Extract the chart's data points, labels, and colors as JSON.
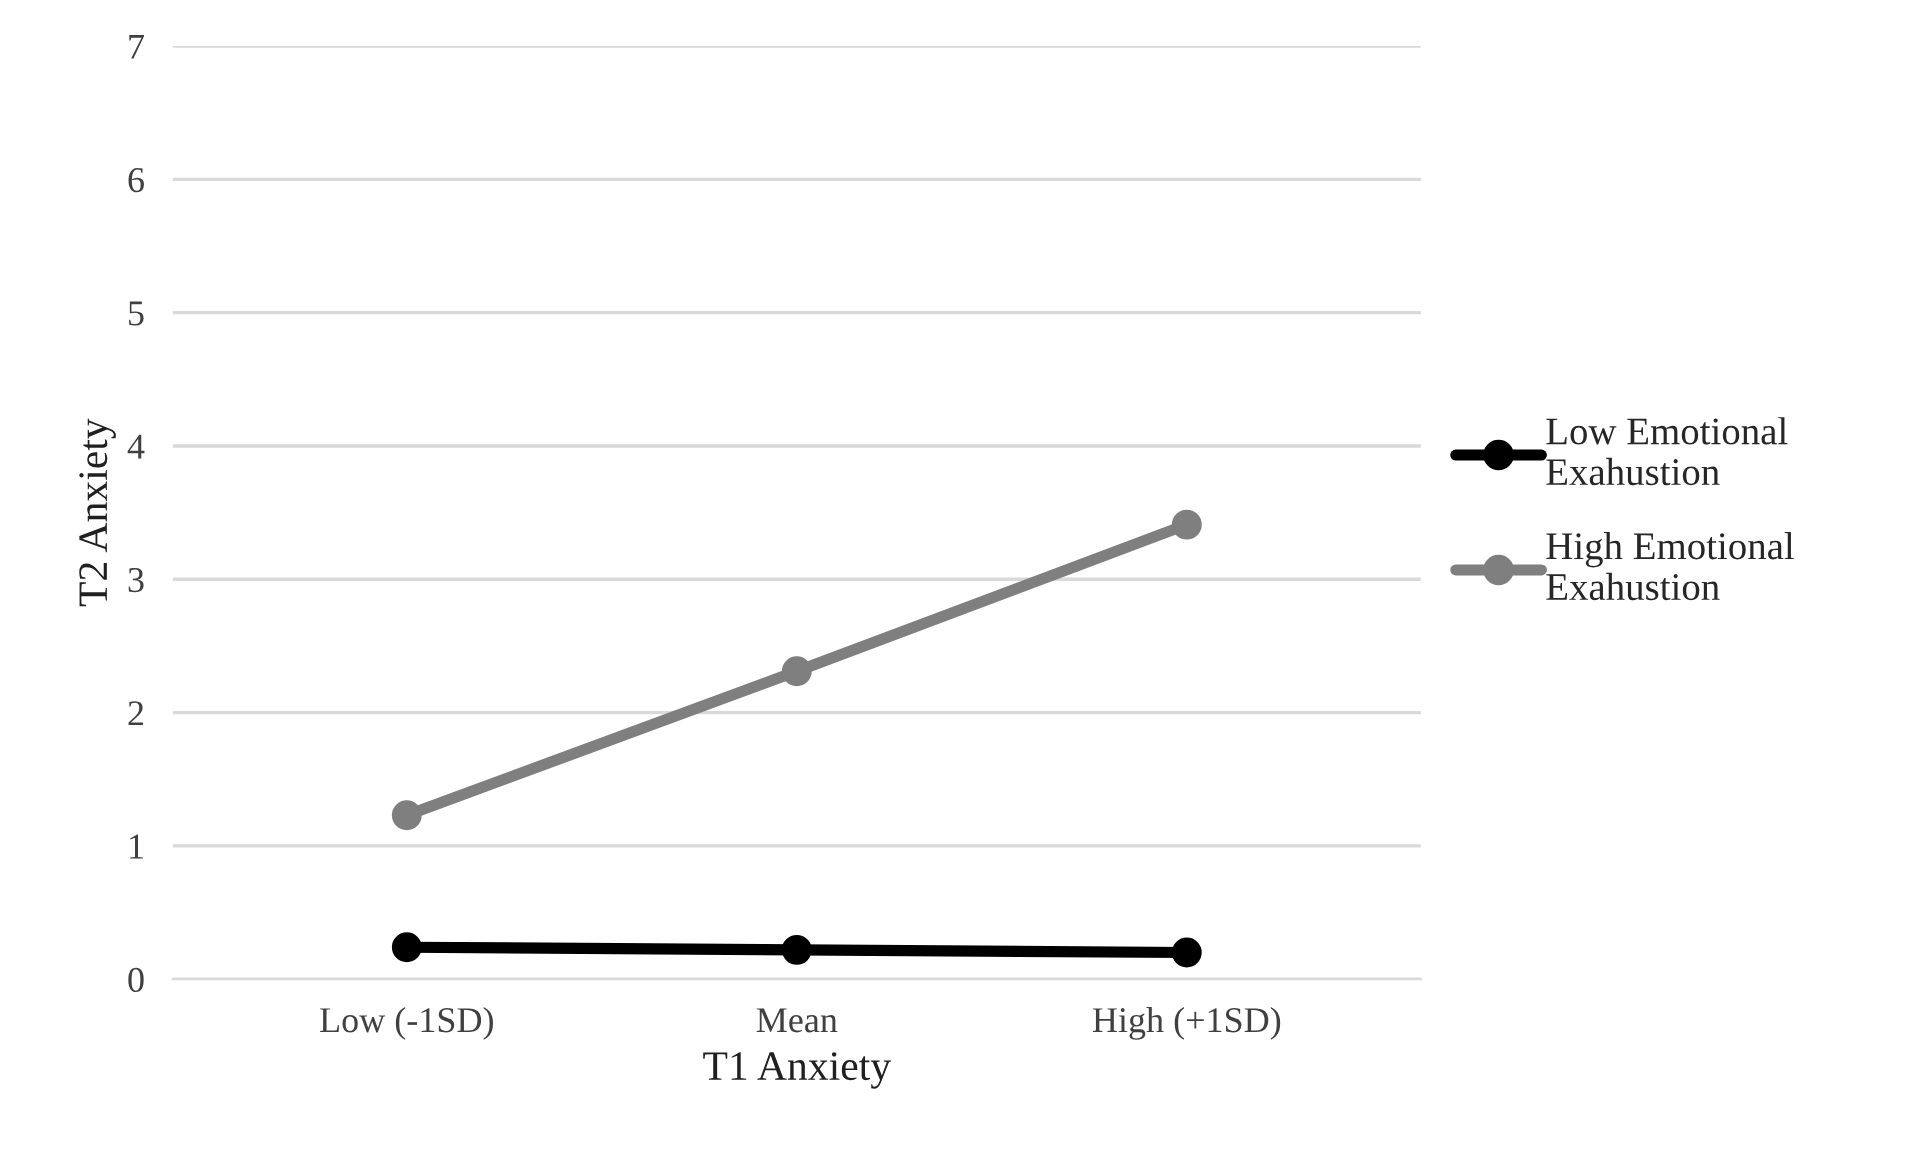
{
  "chart_data": {
    "type": "line",
    "xlabel": "T1 Anxiety",
    "ylabel": "T2 Anxiety",
    "categories": [
      "Low (-1SD)",
      "Mean",
      "High (+1SD)"
    ],
    "series": [
      {
        "name": "Low Emotional Exahustion",
        "color": "#000000",
        "values": [
          0.24,
          0.22,
          0.2
        ]
      },
      {
        "name": "High Emotional Exahustion",
        "color": "#7f7f7f",
        "values": [
          1.23,
          2.31,
          3.41
        ]
      }
    ],
    "ylim": [
      0,
      7
    ],
    "yticks": [
      0,
      1,
      2,
      3,
      4,
      5,
      6,
      7
    ],
    "grid": "y",
    "legend": "right",
    "marker": "circle",
    "line_style": "solid"
  }
}
